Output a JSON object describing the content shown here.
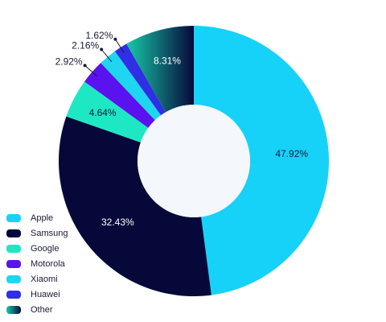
{
  "chart_data": {
    "type": "donut",
    "categories": [
      "Apple",
      "Samsung",
      "Google",
      "Motorola",
      "Xiaomi",
      "Huawei",
      "Other"
    ],
    "values": [
      47.92,
      32.43,
      4.64,
      2.92,
      2.16,
      1.62,
      8.31
    ],
    "value_labels": [
      "47.92%",
      "32.43%",
      "4.64%",
      "2.92%",
      "2.16%",
      "1.62%",
      "8.31%"
    ],
    "colors": [
      "#16d2f8",
      "#07083a",
      "#1ee8c4",
      "#5a12ee",
      "#1ed6f0",
      "#2f2fe6",
      "#17c9a8"
    ],
    "legend": "bottom-left"
  }
}
